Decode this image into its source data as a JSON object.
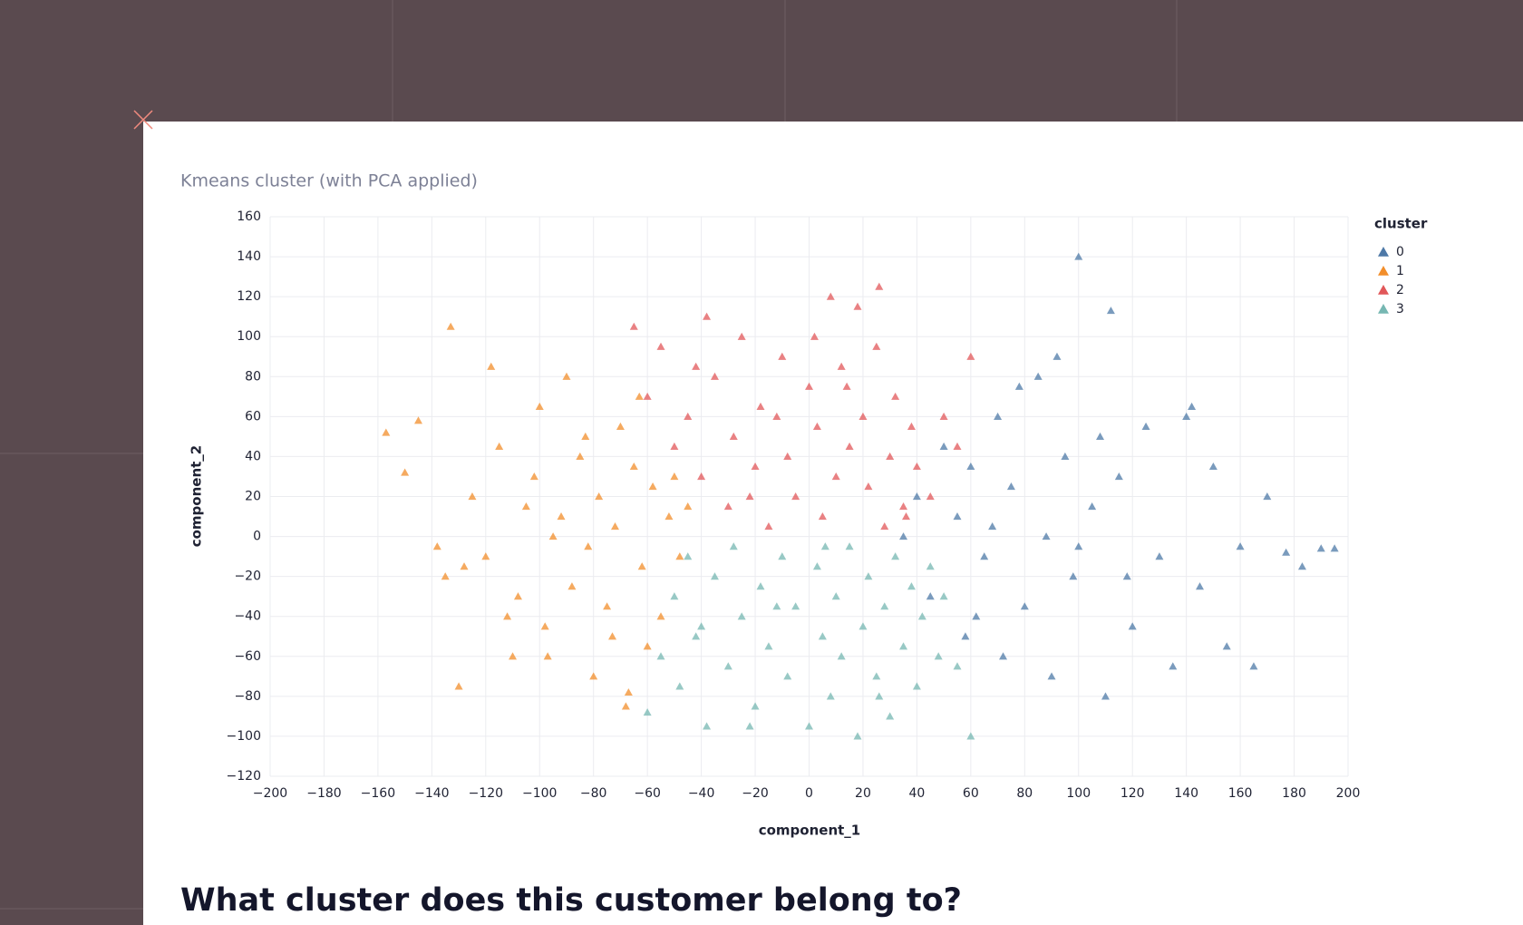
{
  "chart_data": {
    "type": "scatter",
    "title": "Kmeans cluster (with PCA applied)",
    "x_label": "component_1",
    "y_label": "component_2",
    "legend_title": "cluster",
    "legend": "right",
    "grid": true,
    "xlim": [
      -200,
      200
    ],
    "xticks": [
      {
        "value": -200,
        "label": "−200"
      },
      {
        "value": -180,
        "label": "−180"
      },
      {
        "value": -160,
        "label": "−160"
      },
      {
        "value": -140,
        "label": "−140"
      },
      {
        "value": -120,
        "label": "−120"
      },
      {
        "value": -100,
        "label": "−100"
      },
      {
        "value": -80,
        "label": "−80"
      },
      {
        "value": -60,
        "label": "−60"
      },
      {
        "value": -40,
        "label": "−40"
      },
      {
        "value": -20,
        "label": "−20"
      },
      0,
      20,
      40,
      60,
      80,
      100,
      120,
      140,
      160,
      180,
      200
    ],
    "ylim": [
      -120,
      160
    ],
    "yticks": [
      {
        "value": -120,
        "label": "−120"
      },
      {
        "value": -100,
        "label": "−100"
      },
      {
        "value": -80,
        "label": "−80"
      },
      {
        "value": -60,
        "label": "−60"
      },
      {
        "value": -40,
        "label": "−40"
      },
      {
        "value": -20,
        "label": "−20"
      },
      0,
      20,
      40,
      60,
      80,
      100,
      120,
      140,
      160
    ],
    "series": [
      {
        "name": "0",
        "color": "#4e79a7",
        "x": [
          35,
          40,
          45,
          50,
          55,
          58,
          60,
          65,
          70,
          72,
          75,
          80,
          85,
          88,
          90,
          95,
          98,
          100,
          105,
          110,
          115,
          120,
          125,
          130,
          135,
          140,
          145,
          150,
          155,
          160,
          165,
          170,
          177,
          183,
          190,
          195,
          62,
          78,
          92,
          108,
          118,
          142,
          100,
          112,
          68
        ],
        "values": [
          0,
          20,
          -30,
          45,
          10,
          -50,
          35,
          -10,
          60,
          -60,
          25,
          -35,
          80,
          0,
          -70,
          40,
          -20,
          140,
          15,
          -80,
          30,
          -45,
          55,
          -10,
          -65,
          60,
          -25,
          35,
          -55,
          -5,
          -65,
          20,
          -8,
          -15,
          -6,
          -6,
          -40,
          75,
          90,
          50,
          -20,
          65,
          -5,
          113,
          5
        ]
      },
      {
        "name": "1",
        "color": "#f28e2b",
        "x": [
          -157,
          -150,
          -145,
          -135,
          -133,
          -130,
          -125,
          -120,
          -118,
          -115,
          -110,
          -108,
          -105,
          -102,
          -100,
          -98,
          -95,
          -92,
          -90,
          -88,
          -85,
          -82,
          -80,
          -78,
          -75,
          -72,
          -70,
          -68,
          -65,
          -62,
          -60,
          -58,
          -55,
          -52,
          -50,
          -48,
          -45,
          -128,
          -112,
          -97,
          -83,
          -73,
          -63,
          -138,
          -67
        ],
        "values": [
          52,
          32,
          58,
          -20,
          105,
          -75,
          20,
          -10,
          85,
          45,
          -60,
          -30,
          15,
          30,
          65,
          -45,
          0,
          10,
          80,
          -25,
          40,
          -5,
          -70,
          20,
          -35,
          5,
          55,
          -85,
          35,
          -15,
          -55,
          25,
          -40,
          10,
          30,
          -10,
          15,
          -15,
          -40,
          -60,
          50,
          -50,
          70,
          -5,
          -78
        ]
      },
      {
        "name": "2",
        "color": "#e15759",
        "x": [
          -65,
          -60,
          -55,
          -50,
          -45,
          -40,
          -38,
          -35,
          -30,
          -28,
          -25,
          -20,
          -18,
          -15,
          -10,
          -8,
          -5,
          0,
          3,
          5,
          8,
          10,
          12,
          15,
          18,
          20,
          22,
          25,
          28,
          30,
          32,
          35,
          38,
          40,
          45,
          50,
          55,
          60,
          -42,
          -22,
          2,
          26,
          -12,
          14,
          36
        ],
        "values": [
          105,
          70,
          95,
          45,
          60,
          30,
          110,
          80,
          15,
          50,
          100,
          35,
          65,
          5,
          90,
          40,
          20,
          75,
          55,
          10,
          120,
          30,
          85,
          45,
          115,
          60,
          25,
          95,
          5,
          40,
          70,
          15,
          55,
          35,
          20,
          60,
          45,
          90,
          85,
          20,
          100,
          125,
          60,
          75,
          10
        ]
      },
      {
        "name": "3",
        "color": "#76b7b2",
        "x": [
          -60,
          -55,
          -50,
          -48,
          -45,
          -40,
          -38,
          -35,
          -30,
          -28,
          -25,
          -20,
          -18,
          -15,
          -10,
          -8,
          -5,
          0,
          3,
          5,
          8,
          10,
          12,
          15,
          18,
          20,
          22,
          25,
          28,
          30,
          32,
          35,
          38,
          40,
          42,
          45,
          48,
          50,
          55,
          60,
          -42,
          -22,
          6,
          26,
          -12
        ],
        "values": [
          -88,
          -60,
          -30,
          -75,
          -10,
          -45,
          -95,
          -20,
          -65,
          -5,
          -40,
          -85,
          -25,
          -55,
          -10,
          -70,
          -35,
          -95,
          -15,
          -50,
          -80,
          -30,
          -60,
          -5,
          -100,
          -45,
          -20,
          -70,
          -35,
          -90,
          -10,
          -55,
          -25,
          -75,
          -40,
          -15,
          -60,
          -30,
          -65,
          -100,
          -50,
          -95,
          -5,
          -80,
          -35
        ]
      }
    ]
  },
  "heading": "What cluster does this customer belong to?"
}
